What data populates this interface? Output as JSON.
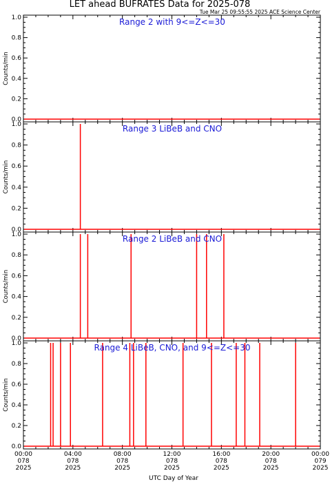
{
  "chart_data": {
    "type": "line",
    "title": "LET ahead BUFRATES Data for 2025-078",
    "timestamp": "Tue Mar 25 09:55:55 2025 ACE Science Center",
    "xlabel": "UTC Day of Year",
    "xlim": [
      0,
      24
    ],
    "x_ticks": [
      {
        "hour": 0,
        "time": "00:00",
        "doy": "078",
        "year": "2025"
      },
      {
        "hour": 4,
        "time": "04:00",
        "doy": "078",
        "year": "2025"
      },
      {
        "hour": 8,
        "time": "08:00",
        "doy": "078",
        "year": "2025"
      },
      {
        "hour": 12,
        "time": "12:00",
        "doy": "078",
        "year": "2025"
      },
      {
        "hour": 16,
        "time": "16:00",
        "doy": "078",
        "year": "2025"
      },
      {
        "hour": 20,
        "time": "20:00",
        "doy": "078",
        "year": "2025"
      },
      {
        "hour": 24,
        "time": "00:00",
        "doy": "079",
        "year": "2025"
      }
    ],
    "ylabel": "Counts/min",
    "ylim": [
      0,
      1
    ],
    "y_ticks": [
      "0.0",
      "0.2",
      "0.4",
      "0.6",
      "0.8",
      "1.0"
    ],
    "line_color": "#ff0000",
    "label_color": "#1a1ad6",
    "panels": [
      {
        "label": "Range 2 with 9<=Z<=30",
        "spike_hours": []
      },
      {
        "label": "Range 3 LiBeB and CNO",
        "spike_hours": [
          4.6
        ]
      },
      {
        "label": "Range 2 LiBeB and CNO",
        "spike_hours": [
          4.6,
          5.2,
          8.7,
          14.0,
          14.8,
          16.2
        ]
      },
      {
        "label": "Range 4 LiBeB, CNO, and 9<=Z<=30",
        "spike_hours": [
          2.2,
          2.4,
          3.0,
          3.8,
          6.4,
          8.6,
          8.9,
          9.9,
          12.9,
          15.2,
          17.2,
          17.9,
          19.1,
          22.0
        ]
      }
    ]
  }
}
